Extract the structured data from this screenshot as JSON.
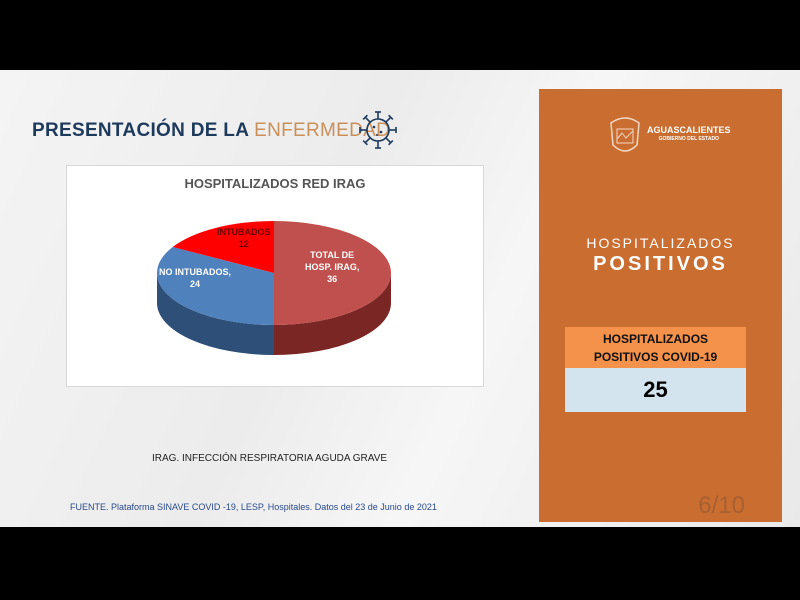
{
  "slide": {
    "title_main": "PRESENTACIÓN DE LA",
    "title_accent": "ENFERMEDAD",
    "note": "IRAG. INFECCIÓN RESPIRATORIA AGUDA GRAVE",
    "source": "FUENTE. Plataforma SINAVE COVID -19, LESP, Hospitales. Datos del 23 de Junio de 2021"
  },
  "chart_data": {
    "type": "pie",
    "style": "3d",
    "title": "HOSPITALIZADOS RED IRAG",
    "slices": [
      {
        "label": "TOTAL DE HOSP. IRAG,",
        "label_lines": [
          "TOTAL DE",
          "HOSP. IRAG,"
        ],
        "value": 36,
        "color": "#c0504d",
        "side_color": "#7a2624",
        "text_color": "#ffffff"
      },
      {
        "label": "NO INTUBADOS,",
        "label_lines": [
          "NO INTUBADOS,"
        ],
        "value": 24,
        "color": "#4f81bd",
        "side_color": "#2e4f78",
        "text_color": "#ffffff"
      },
      {
        "label": "INTUBADOS",
        "label_lines": [
          "INTUBADOS"
        ],
        "value": 12,
        "color": "#ff0000",
        "side_color": "#a00000",
        "text_color": "#6b0000"
      }
    ]
  },
  "panel": {
    "brand": "AGUASCALIENTES",
    "brand_sub": "GOBIERNO DEL ESTADO",
    "heading_light": "HOSPITALIZADOS",
    "heading_bold": "POSITIVOS",
    "box_label_1": "HOSPITALIZADOS",
    "box_label_2": "POSITIVOS COVID-19",
    "box_value": "25",
    "page": "6/10",
    "color": "#c96d30"
  }
}
